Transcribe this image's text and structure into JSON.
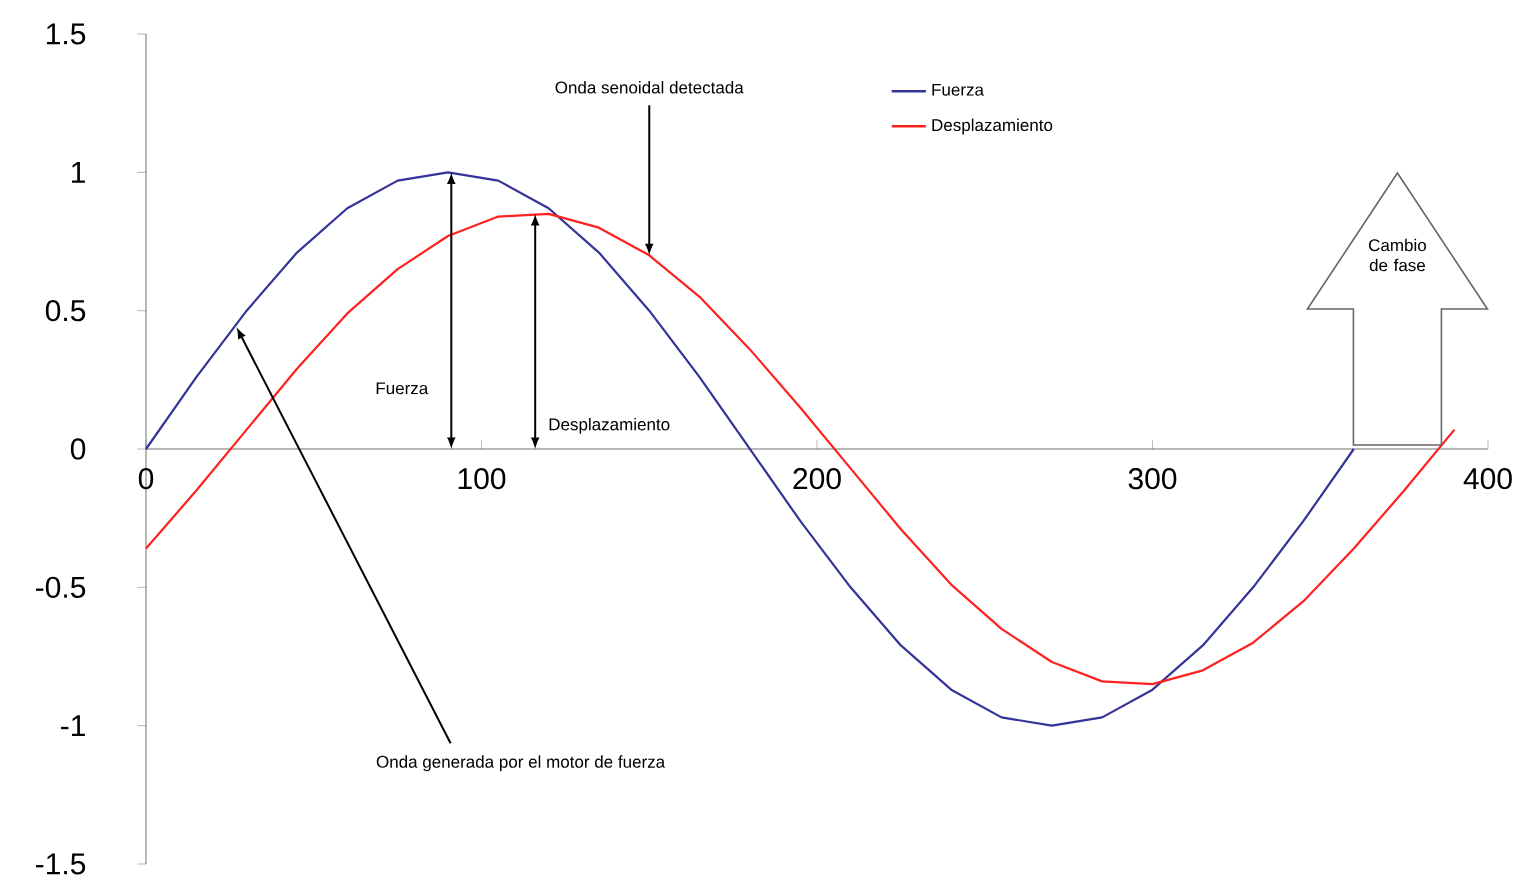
{
  "chart_data": {
    "type": "line",
    "series": [
      {
        "name": "Fuerza",
        "color": "#333399",
        "x": [
          0,
          15,
          30,
          45,
          60,
          75,
          90,
          105,
          120,
          135,
          150,
          165,
          180,
          195,
          210,
          225,
          240,
          255,
          270,
          285,
          300,
          315,
          330,
          345,
          360
        ],
        "values": [
          0,
          0.26,
          0.5,
          0.71,
          0.87,
          0.97,
          1,
          0.97,
          0.87,
          0.71,
          0.5,
          0.26,
          0,
          -0.26,
          -0.5,
          -0.71,
          -0.87,
          -0.97,
          -1,
          -0.97,
          -0.87,
          -0.71,
          -0.5,
          -0.26,
          0
        ]
      },
      {
        "name": "Desplazamiento",
        "color": "#ff2020",
        "x": [
          0,
          15,
          30,
          45,
          60,
          75,
          90,
          105,
          120,
          135,
          150,
          165,
          180,
          195,
          210,
          225,
          240,
          255,
          270,
          285,
          300,
          315,
          330,
          345,
          360,
          375,
          390
        ],
        "values": [
          -0.36,
          -0.15,
          0.07,
          0.29,
          0.49,
          0.65,
          0.77,
          0.84,
          0.85,
          0.8,
          0.7,
          0.55,
          0.36,
          0.15,
          -0.07,
          -0.29,
          -0.49,
          -0.65,
          -0.77,
          -0.84,
          -0.85,
          -0.8,
          -0.7,
          -0.55,
          -0.36,
          -0.15,
          0.07
        ]
      }
    ],
    "xlim": [
      0,
      400
    ],
    "xticks": [
      0,
      100,
      200,
      300,
      400
    ],
    "ylim": [
      -1.5,
      1.5
    ],
    "yticks": [
      -1.5,
      -1,
      -0.5,
      0,
      0.5,
      1,
      1.5
    ],
    "legend": "top right",
    "annotations": [
      {
        "text": "Onda senoidal detectada",
        "x": 150,
        "y": 0.7
      },
      {
        "text": "Onda generada por el motor de fuerza",
        "x": 27,
        "y": 0.44
      },
      "Fuerza",
      "Desplazamiento",
      "Cambio de fase"
    ]
  }
}
